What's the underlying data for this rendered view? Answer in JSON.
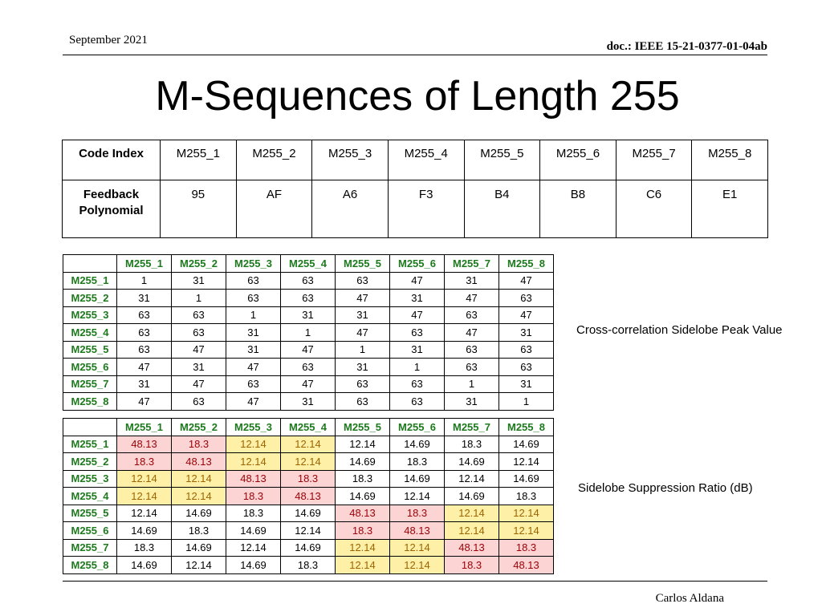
{
  "header": {
    "date": "September 2021",
    "doc": "doc.: IEEE 15-21-0377-01-04ab"
  },
  "title": "M-Sequences of Length 255",
  "code_table": {
    "row1_label": "Code Index",
    "row2_label": "Feedback Polynomial",
    "codes": [
      "M255_1",
      "M255_2",
      "M255_3",
      "M255_4",
      "M255_5",
      "M255_6",
      "M255_7",
      "M255_8"
    ],
    "polynomials": [
      "95",
      "AF",
      "A6",
      "F3",
      "B4",
      "B8",
      "C6",
      "E1"
    ]
  },
  "cross_correlation": {
    "label": "Cross-correlation Sidelobe Peak Value",
    "headers": [
      "M255_1",
      "M255_2",
      "M255_3",
      "M255_4",
      "M255_5",
      "M255_6",
      "M255_7",
      "M255_8"
    ],
    "rows": [
      {
        "label": "M255_1",
        "values": [
          "1",
          "31",
          "63",
          "63",
          "63",
          "47",
          "31",
          "47"
        ]
      },
      {
        "label": "M255_2",
        "values": [
          "31",
          "1",
          "63",
          "63",
          "47",
          "31",
          "47",
          "63"
        ]
      },
      {
        "label": "M255_3",
        "values": [
          "63",
          "63",
          "1",
          "31",
          "31",
          "47",
          "63",
          "47"
        ]
      },
      {
        "label": "M255_4",
        "values": [
          "63",
          "63",
          "31",
          "1",
          "47",
          "63",
          "47",
          "31"
        ]
      },
      {
        "label": "M255_5",
        "values": [
          "63",
          "47",
          "31",
          "47",
          "1",
          "31",
          "63",
          "63"
        ]
      },
      {
        "label": "M255_6",
        "values": [
          "47",
          "31",
          "47",
          "63",
          "31",
          "1",
          "63",
          "63"
        ]
      },
      {
        "label": "M255_7",
        "values": [
          "31",
          "47",
          "63",
          "47",
          "63",
          "63",
          "1",
          "31"
        ]
      },
      {
        "label": "M255_8",
        "values": [
          "47",
          "63",
          "47",
          "31",
          "63",
          "63",
          "31",
          "1"
        ]
      }
    ]
  },
  "suppression": {
    "label": "Sidelobe Suppression Ratio (dB)",
    "colors": {
      "red_fill": "#fcd4d4",
      "red_text": "#9c0006",
      "yellow_fill": "#fff0a8",
      "yellow_text": "#9c6500",
      "header_text": "#1d7a1d"
    },
    "headers": [
      "M255_1",
      "M255_2",
      "M255_3",
      "M255_4",
      "M255_5",
      "M255_6",
      "M255_7",
      "M255_8"
    ],
    "rows": [
      {
        "label": "M255_1",
        "values": [
          "48.13",
          "18.3",
          "12.14",
          "12.14",
          "12.14",
          "14.69",
          "18.3",
          "14.69"
        ],
        "hl": [
          "r",
          "r",
          "y",
          "y",
          "",
          "",
          "",
          ""
        ]
      },
      {
        "label": "M255_2",
        "values": [
          "18.3",
          "48.13",
          "12.14",
          "12.14",
          "14.69",
          "18.3",
          "14.69",
          "12.14"
        ],
        "hl": [
          "r",
          "r",
          "y",
          "y",
          "",
          "",
          "",
          ""
        ]
      },
      {
        "label": "M255_3",
        "values": [
          "12.14",
          "12.14",
          "48.13",
          "18.3",
          "18.3",
          "14.69",
          "12.14",
          "14.69"
        ],
        "hl": [
          "y",
          "y",
          "r",
          "r",
          "",
          "",
          "",
          ""
        ]
      },
      {
        "label": "M255_4",
        "values": [
          "12.14",
          "12.14",
          "18.3",
          "48.13",
          "14.69",
          "12.14",
          "14.69",
          "18.3"
        ],
        "hl": [
          "y",
          "y",
          "r",
          "r",
          "",
          "",
          "",
          ""
        ]
      },
      {
        "label": "M255_5",
        "values": [
          "12.14",
          "14.69",
          "18.3",
          "14.69",
          "48.13",
          "18.3",
          "12.14",
          "12.14"
        ],
        "hl": [
          "",
          "",
          "",
          "",
          "r",
          "r",
          "y",
          "y"
        ]
      },
      {
        "label": "M255_6",
        "values": [
          "14.69",
          "18.3",
          "14.69",
          "12.14",
          "18.3",
          "48.13",
          "12.14",
          "12.14"
        ],
        "hl": [
          "",
          "",
          "",
          "",
          "r",
          "r",
          "y",
          "y"
        ]
      },
      {
        "label": "M255_7",
        "values": [
          "18.3",
          "14.69",
          "12.14",
          "14.69",
          "12.14",
          "12.14",
          "48.13",
          "18.3"
        ],
        "hl": [
          "",
          "",
          "",
          "",
          "y",
          "y",
          "r",
          "r"
        ]
      },
      {
        "label": "M255_8",
        "values": [
          "14.69",
          "12.14",
          "14.69",
          "18.3",
          "12.14",
          "12.14",
          "18.3",
          "48.13"
        ],
        "hl": [
          "",
          "",
          "",
          "",
          "y",
          "y",
          "r",
          "r"
        ]
      }
    ]
  },
  "footer": {
    "author": "Carlos Aldana"
  }
}
